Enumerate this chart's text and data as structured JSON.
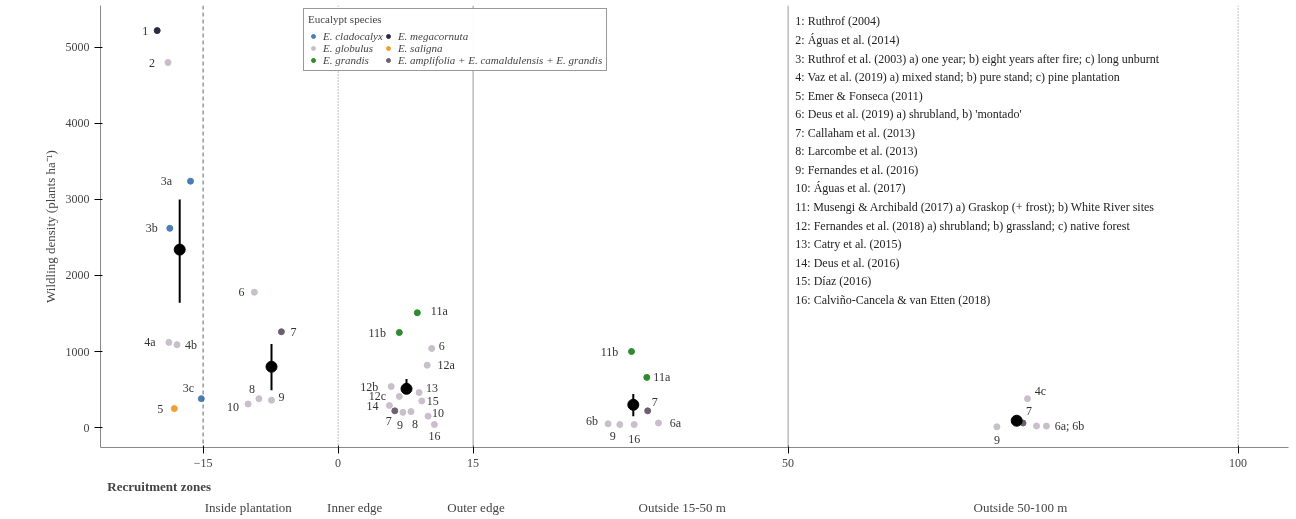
{
  "chart_data": {
    "type": "scatter",
    "ylabel": "Wildling density (plants ha⁻¹)",
    "legend_title": "Eucalypt species",
    "legend": "top",
    "grid": false,
    "marker": "circle",
    "xlim": [
      -26.4,
      105.6
    ],
    "xticks": [
      -15,
      0,
      15,
      50,
      100
    ],
    "ylim": [
      -262,
      5550
    ],
    "yticks": [
      0,
      1000,
      2000,
      3000,
      4000,
      5000
    ],
    "series": [
      {
        "name": "E. cladocalyx",
        "color": "#4a7fb5",
        "x": [
          -16.4,
          -18.7,
          -15.2
        ],
        "values": [
          3240,
          2620,
          380
        ]
      },
      {
        "name": "E. globulus",
        "color": "#c9bfcb",
        "x": [
          -18.9,
          -18.8,
          -17.9,
          -9.3,
          -8.8,
          -7.4,
          -10.0,
          10.4,
          9.9,
          5.9,
          9.0,
          6.8,
          5.7,
          9.3,
          7.2,
          8.1,
          10.0,
          10.7,
          30.0,
          31.3,
          32.9,
          35.6,
          76.6,
          73.2,
          77.6,
          78.7
        ],
        "values": [
          4800,
          1120,
          1090,
          1780,
          380,
          360,
          310,
          1040,
          820,
          540,
          460,
          410,
          290,
          350,
          200,
          210,
          150,
          40,
          50,
          40,
          40,
          60,
          380,
          10,
          20,
          20
        ]
      },
      {
        "name": "E. grandis",
        "color": "#2e8b2e",
        "x": [
          8.8,
          6.8,
          32.6,
          34.3
        ],
        "values": [
          1510,
          1250,
          1000,
          660
        ]
      },
      {
        "name": "E. megacornuta",
        "color": "#2b2b45",
        "x": [
          -20.1
        ],
        "values": [
          5220
        ]
      },
      {
        "name": "E. saligna",
        "color": "#f0a030",
        "x": [
          -18.2
        ],
        "values": [
          250
        ]
      },
      {
        "name": "E. amplifolia + E. camaldulensis + E. grandis",
        "color": "#6e5f70",
        "x": [
          -6.3,
          6.3,
          34.4,
          76.1
        ],
        "values": [
          1260,
          220,
          220,
          60
        ]
      },
      {
        "color": "#000000",
        "x": [
          -17.6,
          -7.4,
          7.6,
          32.8,
          75.4
        ],
        "values": [
          2340,
          800,
          510,
          300,
          90
        ],
        "errors": [
          [
            1640,
            3000
          ],
          [
            490,
            1100
          ],
          [
            450,
            640
          ],
          [
            150,
            440
          ],
          [
            40,
            140
          ]
        ]
      }
    ],
    "ref_lines": [
      {
        "axis": "x",
        "value": -15,
        "color": "#666666",
        "line_style": "dashed"
      },
      {
        "axis": "x",
        "value": 0,
        "color": "#888888",
        "line_style": "dotted"
      },
      {
        "axis": "x",
        "value": 15,
        "color": "#999999",
        "line_style": "solid"
      },
      {
        "axis": "x",
        "value": 50,
        "color": "#999999",
        "line_style": "solid"
      },
      {
        "axis": "x",
        "value": 100,
        "color": "#888888",
        "line_style": "dotted"
      }
    ],
    "annotations": [
      {
        "text": "1",
        "x": -20.1,
        "y": 5220
      },
      {
        "text": "2",
        "x": -18.9,
        "y": 4800
      },
      {
        "text": "3a",
        "x": -16.4,
        "y": 3240
      },
      {
        "text": "3b",
        "x": -18.7,
        "y": 2620
      },
      {
        "text": "3c",
        "x": -15.2,
        "y": 380
      },
      {
        "text": "4a",
        "x": -18.8,
        "y": 1120
      },
      {
        "text": "4b",
        "x": -17.9,
        "y": 1090
      },
      {
        "text": "5",
        "x": -18.2,
        "y": 250
      },
      {
        "text": "6",
        "x": -9.3,
        "y": 1780
      },
      {
        "text": "7",
        "x": -6.3,
        "y": 1260
      },
      {
        "text": "8",
        "x": -8.8,
        "y": 380
      },
      {
        "text": "9",
        "x": -7.4,
        "y": 360
      },
      {
        "text": "10",
        "x": -10.0,
        "y": 310
      },
      {
        "text": "11a",
        "x": 8.8,
        "y": 1510
      },
      {
        "text": "11b",
        "x": 6.8,
        "y": 1250
      },
      {
        "text": "6",
        "x": 10.4,
        "y": 1040
      },
      {
        "text": "12a",
        "x": 9.9,
        "y": 820
      },
      {
        "text": "12b",
        "x": 5.9,
        "y": 540
      },
      {
        "text": "13",
        "x": 9.0,
        "y": 460
      },
      {
        "text": "12c",
        "x": 6.8,
        "y": 410
      },
      {
        "text": "15",
        "x": 9.3,
        "y": 350
      },
      {
        "text": "14",
        "x": 5.7,
        "y": 290
      },
      {
        "text": "7",
        "x": 6.3,
        "y": 220
      },
      {
        "text": "9",
        "x": 7.2,
        "y": 200
      },
      {
        "text": "8",
        "x": 8.1,
        "y": 210
      },
      {
        "text": "10",
        "x": 10.0,
        "y": 150
      },
      {
        "text": "16",
        "x": 10.7,
        "y": 40
      },
      {
        "text": "11b",
        "x": 32.6,
        "y": 1000
      },
      {
        "text": "11a",
        "x": 34.3,
        "y": 660
      },
      {
        "text": "7",
        "x": 34.4,
        "y": 220
      },
      {
        "text": "6b",
        "x": 30.0,
        "y": 50
      },
      {
        "text": "9",
        "x": 31.3,
        "y": 40
      },
      {
        "text": "16",
        "x": 32.9,
        "y": 40
      },
      {
        "text": "6a",
        "x": 35.6,
        "y": 60
      },
      {
        "text": "4c",
        "x": 76.6,
        "y": 380
      },
      {
        "text": "7",
        "x": 76.1,
        "y": 60
      },
      {
        "text": "9",
        "x": 73.2,
        "y": 10
      },
      {
        "text": "6a; 6b",
        "x": 77.6,
        "y": 20
      },
      "Recruitment zones",
      "Inside plantation",
      "Inner edge",
      "Outer edge",
      "Outside 15-50 m",
      "Outside 50-100 m",
      "1: Ruthrof  (2004)",
      "2: Águas et al. (2014)",
      "3: Ruthrof  et al. (2003) a) one year; b) eight  years after fire;  c) long  unburnt",
      "4: Vaz et al. (2019) a) mixed  stand; b) pure stand;  c) pine  plantation",
      "5: Emer  & Fonseca (2011)",
      "6: Deus et al. (2019) a) shrubland,  b) 'montado'",
      "7: Callaham  et al. (2013)",
      "8: Larcombe  et al. (2013)",
      "9: Fernandes  et al. (2016)",
      "10: Águas et al. (2017)",
      "11: Musengi  & Archibald  (2017) a) Graskop (+ frost);  b) White River  sites",
      "12: Fernandes  et al. (2018) a) shrubland;  b) grassland;  c) native  forest",
      "13: Catry et al. (2015)",
      "14: Deus  et al. (2016)",
      "15: Díaz  (2016)",
      "16: Calviño-Cancela  & van Etten (2018)"
    ]
  }
}
